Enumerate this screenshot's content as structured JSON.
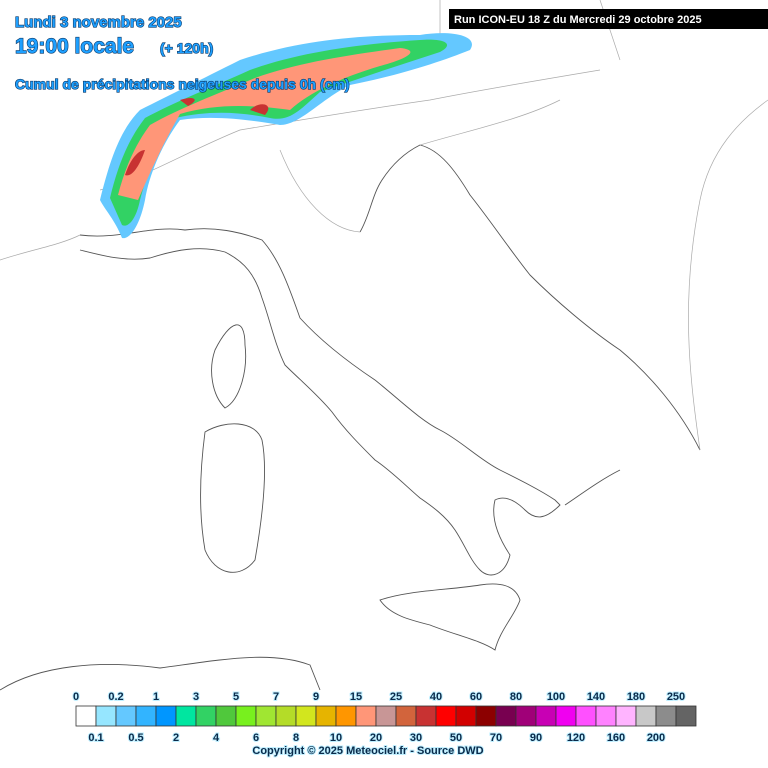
{
  "header": {
    "date": "Lundi 3 novembre 2025",
    "time": "19:00 locale",
    "lead": "(+ 120h)",
    "field": "Cumul de précipitations neigeuses depuis 0h (cm)",
    "run": "Run ICON-EU 18 Z du Mercredi 29 octobre 2025"
  },
  "legend": {
    "items": [
      {
        "label": 0,
        "color": "#ffffff"
      },
      {
        "label": 0.1,
        "color": "#96e6ff"
      },
      {
        "label": 0.2,
        "color": "#64c8ff"
      },
      {
        "label": 0.5,
        "color": "#32b4ff"
      },
      {
        "label": 1,
        "color": "#0096ff"
      },
      {
        "label": 2,
        "color": "#00e6a0"
      },
      {
        "label": 3,
        "color": "#32d264"
      },
      {
        "label": 4,
        "color": "#50c83c"
      },
      {
        "label": 5,
        "color": "#78f01e"
      },
      {
        "label": 6,
        "color": "#a0e632"
      },
      {
        "label": 7,
        "color": "#b4dc28"
      },
      {
        "label": 8,
        "color": "#d2e61e"
      },
      {
        "label": 9,
        "color": "#e6b400"
      },
      {
        "label": 10,
        "color": "#ff9600"
      },
      {
        "label": 15,
        "color": "#ff9678"
      },
      {
        "label": 20,
        "color": "#c89696"
      },
      {
        "label": 25,
        "color": "#d2643c"
      },
      {
        "label": 30,
        "color": "#c83232"
      },
      {
        "label": 40,
        "color": "#ff0000"
      },
      {
        "label": 50,
        "color": "#d20000"
      },
      {
        "label": 60,
        "color": "#8c0000"
      },
      {
        "label": 70,
        "color": "#780050"
      },
      {
        "label": 80,
        "color": "#a00078"
      },
      {
        "label": 90,
        "color": "#c800b4"
      },
      {
        "label": 100,
        "color": "#f000f0"
      },
      {
        "label": 120,
        "color": "#ff50ff"
      },
      {
        "label": 140,
        "color": "#ff82ff"
      },
      {
        "label": 160,
        "color": "#ffb4ff"
      },
      {
        "label": 180,
        "color": "#c8c8c8"
      },
      {
        "label": 200,
        "color": "#8c8c8c"
      },
      {
        "label": 250,
        "color": "#646464"
      }
    ]
  },
  "footer": {
    "copyright": "Copyright © 2025 Meteociel.fr - Source DWD"
  }
}
